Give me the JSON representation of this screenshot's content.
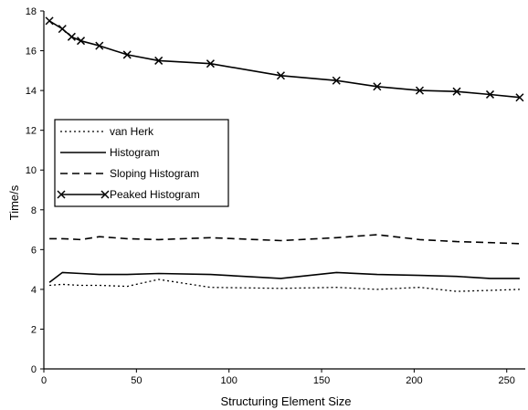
{
  "chart_data": {
    "type": "line",
    "title": "",
    "xlabel": "Structuring Element Size",
    "ylabel": "Time/s",
    "xlim": [
      0,
      260
    ],
    "ylim": [
      0,
      18
    ],
    "x_ticks": [
      0,
      50,
      100,
      150,
      200,
      250
    ],
    "y_ticks": [
      0,
      2,
      4,
      6,
      8,
      10,
      12,
      14,
      16,
      18
    ],
    "grid": false,
    "legend_position": "left-middle",
    "series": [
      {
        "name": "van Herk",
        "style": "dotted",
        "marker": "none",
        "x": [
          3,
          10,
          20,
          30,
          45,
          62,
          90,
          128,
          158,
          180,
          203,
          223,
          241,
          257
        ],
        "y": [
          4.2,
          4.25,
          4.2,
          4.2,
          4.15,
          4.5,
          4.1,
          4.05,
          4.1,
          4.0,
          4.1,
          3.9,
          3.95,
          4.0
        ]
      },
      {
        "name": "Histogram",
        "style": "solid",
        "marker": "none",
        "x": [
          3,
          10,
          20,
          30,
          45,
          62,
          90,
          128,
          158,
          180,
          203,
          223,
          241,
          257
        ],
        "y": [
          4.35,
          4.85,
          4.8,
          4.75,
          4.75,
          4.8,
          4.75,
          4.55,
          4.85,
          4.75,
          4.7,
          4.65,
          4.55,
          4.55
        ]
      },
      {
        "name": "Sloping Histogram",
        "style": "dashed",
        "marker": "none",
        "x": [
          3,
          10,
          20,
          30,
          45,
          62,
          90,
          128,
          158,
          180,
          203,
          223,
          241,
          257
        ],
        "y": [
          6.55,
          6.55,
          6.5,
          6.65,
          6.55,
          6.5,
          6.6,
          6.45,
          6.6,
          6.75,
          6.5,
          6.4,
          6.35,
          6.3
        ]
      },
      {
        "name": "Peaked Histogram",
        "style": "solid",
        "marker": "x",
        "x": [
          3,
          10,
          15,
          20,
          30,
          45,
          62,
          90,
          128,
          158,
          180,
          203,
          223,
          241,
          257
        ],
        "y": [
          17.5,
          17.1,
          16.7,
          16.5,
          16.25,
          15.8,
          15.5,
          15.35,
          14.75,
          14.5,
          14.2,
          14.0,
          13.95,
          13.8,
          13.65
        ]
      }
    ]
  }
}
